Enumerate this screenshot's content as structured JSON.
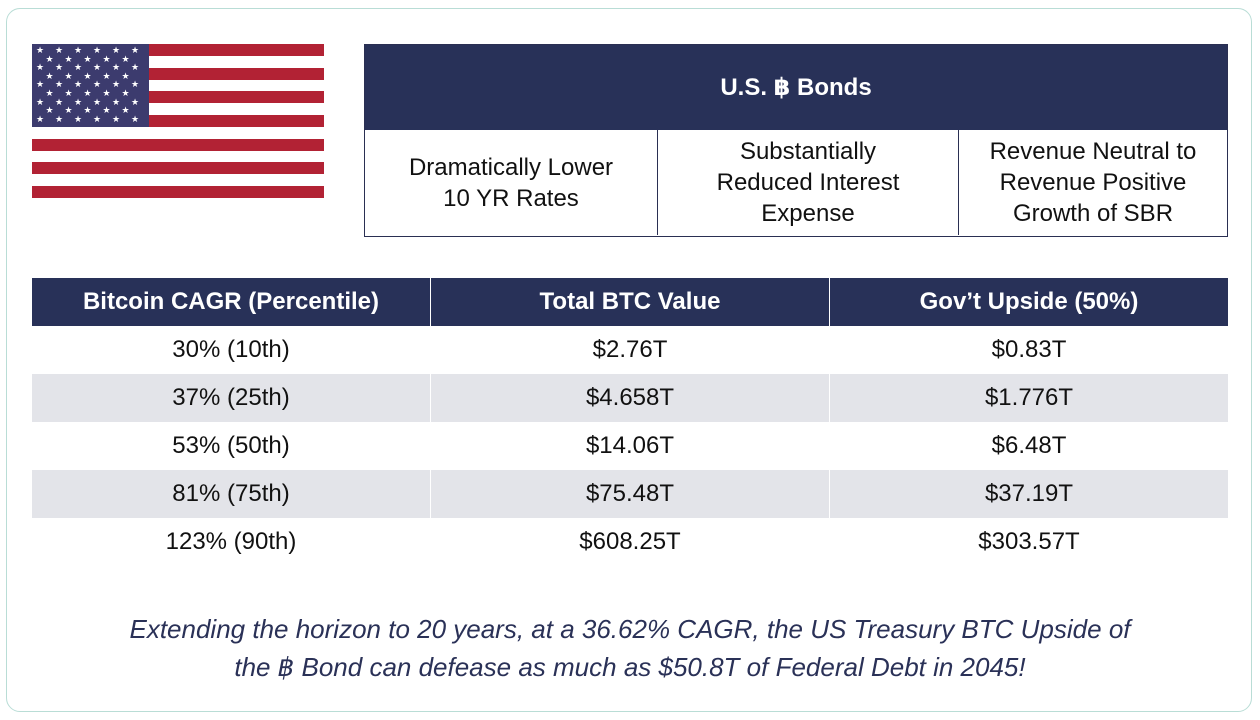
{
  "bond_box": {
    "title": "U.S. ฿ Bonds",
    "benefits": [
      "Dramatically Lower 10 YR Rates",
      "Substantially Reduced Interest Expense",
      "Revenue Neutral to Revenue Positive Growth of SBR"
    ]
  },
  "flag": {
    "icon": "us-flag-icon",
    "colors": {
      "red": "#b22234",
      "white": "#ffffff",
      "blue": "#3c3b6e"
    }
  },
  "table": {
    "headers": [
      "Bitcoin CAGR (Percentile)",
      "Total BTC Value",
      "Gov’t Upside (50%)"
    ],
    "rows": [
      [
        "30% (10th)",
        "$2.76T",
        "$0.83T"
      ],
      [
        "37% (25th)",
        "$4.658T",
        "$1.776T"
      ],
      [
        "53% (50th)",
        "$14.06T",
        "$6.48T"
      ],
      [
        "81% (75th)",
        "$75.48T",
        "$37.19T"
      ],
      [
        "123% (90th)",
        "$608.25T",
        "$303.57T"
      ]
    ]
  },
  "footnote": {
    "line1": "Extending the horizon to 20 years, at a 36.62% CAGR, the US Treasury BTC Upside of",
    "line2": "the ฿ Bond can defease as much as $50.8T of Federal Debt in 2045!"
  },
  "colors": {
    "navy": "#283158",
    "alt_row": "#e3e4e9",
    "border": "#b9ddd6",
    "footnote": "#2a3157"
  }
}
